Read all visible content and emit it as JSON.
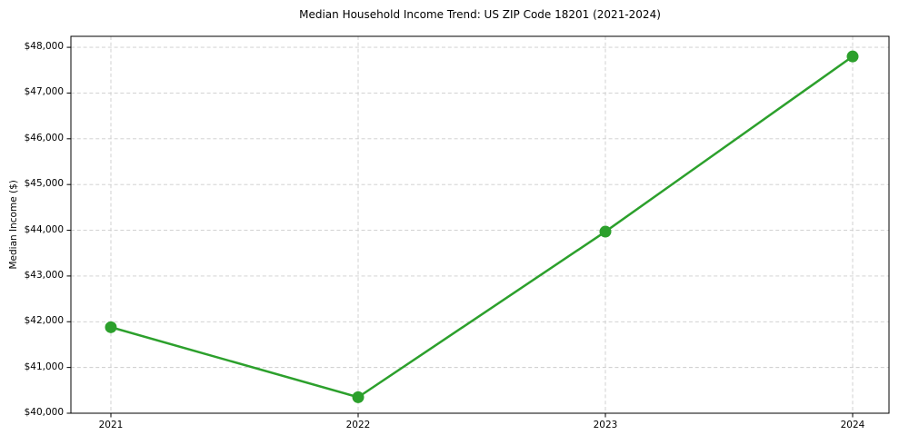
{
  "chart_data": {
    "type": "line",
    "title": "Median Household Income Trend: US ZIP Code 18201 (2021-2024)",
    "xlabel": "",
    "ylabel": "Median Income ($)",
    "categories": [
      "2021",
      "2022",
      "2023",
      "2024"
    ],
    "series": [
      {
        "name": "Median Household Income",
        "values": [
          41880,
          40350,
          43970,
          47800
        ]
      }
    ],
    "yticks": [
      40000,
      41000,
      42000,
      43000,
      44000,
      45000,
      46000,
      47000,
      48000
    ],
    "yticklabels": [
      "$40,000",
      "$41,000",
      "$42,000",
      "$43,000",
      "$44,000",
      "$45,000",
      "$46,000",
      "$47,000",
      "$48,000"
    ],
    "ylim": [
      40000,
      48240
    ],
    "grid": true,
    "grid_style": "dashed",
    "legend_position": "none",
    "colors": {
      "line": "#2ca02c",
      "marker": "#2ca02c",
      "grid": "#cccccc",
      "axes": "#000000",
      "text": "#000000",
      "background": "#ffffff"
    }
  }
}
